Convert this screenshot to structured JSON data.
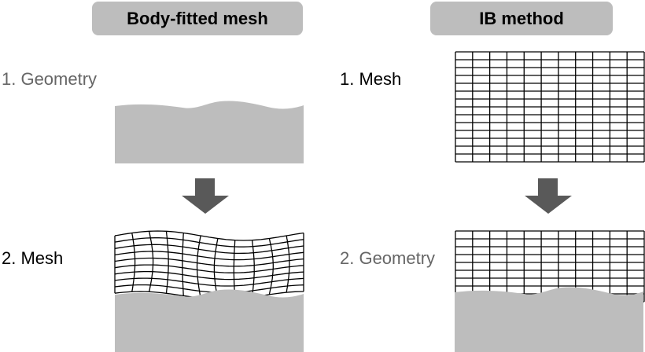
{
  "left_panel": {
    "title": "Body-fitted mesh",
    "step1": "1. Geometry",
    "step2": "2. Mesh"
  },
  "right_panel": {
    "title": "IB method",
    "step1": "1. Mesh",
    "step2": "2. Geometry"
  },
  "colors": {
    "header_bg": "#bdbdbd",
    "geometry_fill": "#bdbdbd",
    "arrow": "#595959",
    "grid_line": "#000000",
    "gray_label": "#666666"
  },
  "icons": [
    "down-arrow-icon",
    "down-arrow-icon"
  ]
}
